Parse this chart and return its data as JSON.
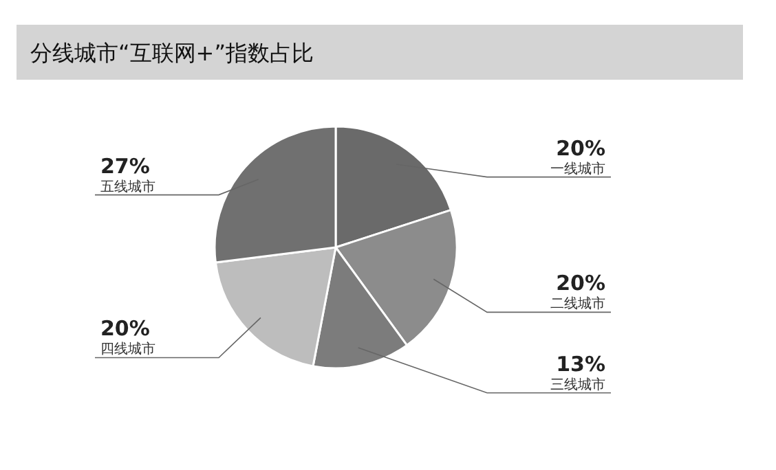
{
  "chart_data": {
    "type": "pie",
    "title": "分线城市“互联网+”指数占比",
    "categories": [
      "一线城市",
      "二线城市",
      "三线城市",
      "四线城市",
      "五线城市"
    ],
    "values": [
      20,
      20,
      13,
      20,
      27
    ],
    "colors": [
      "#6a6a6a",
      "#8c8c8c",
      "#7c7c7c",
      "#bdbdbd",
      "#707070"
    ],
    "value_labels": [
      "20%",
      "20%",
      "13%",
      "20%",
      "27%"
    ]
  }
}
